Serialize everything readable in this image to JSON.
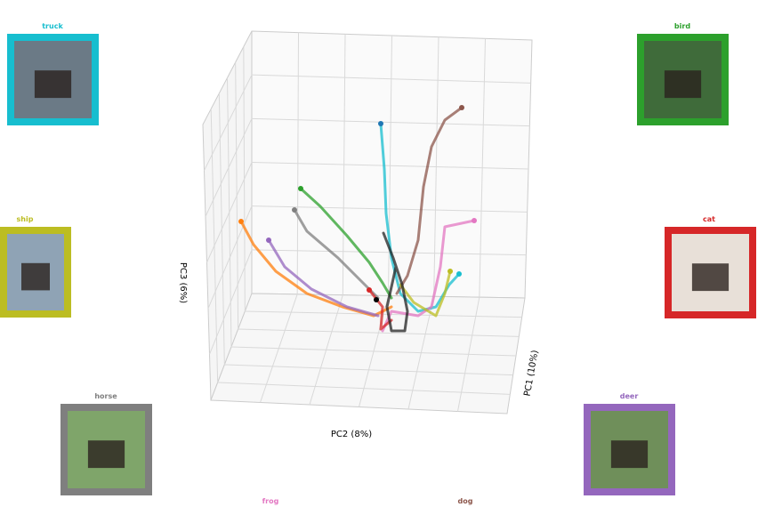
{
  "axes": {
    "x_label": "PC2 (8%)",
    "y_label": "PC1 (10%)",
    "z_label": "PC3 (6%)"
  },
  "images": [
    {
      "label": "truck",
      "color": "#17becf"
    },
    {
      "label": "ship",
      "color": "#bcbd22"
    },
    {
      "label": "horse",
      "color": "#7f7f7f"
    },
    {
      "label": "frog",
      "color": "#e377c2"
    },
    {
      "label": "dog",
      "color": "#8c564b"
    },
    {
      "label": "deer",
      "color": "#9467bd"
    },
    {
      "label": "cat",
      "color": "#d62728"
    },
    {
      "label": "bird",
      "color": "#2ca02c"
    }
  ]
}
